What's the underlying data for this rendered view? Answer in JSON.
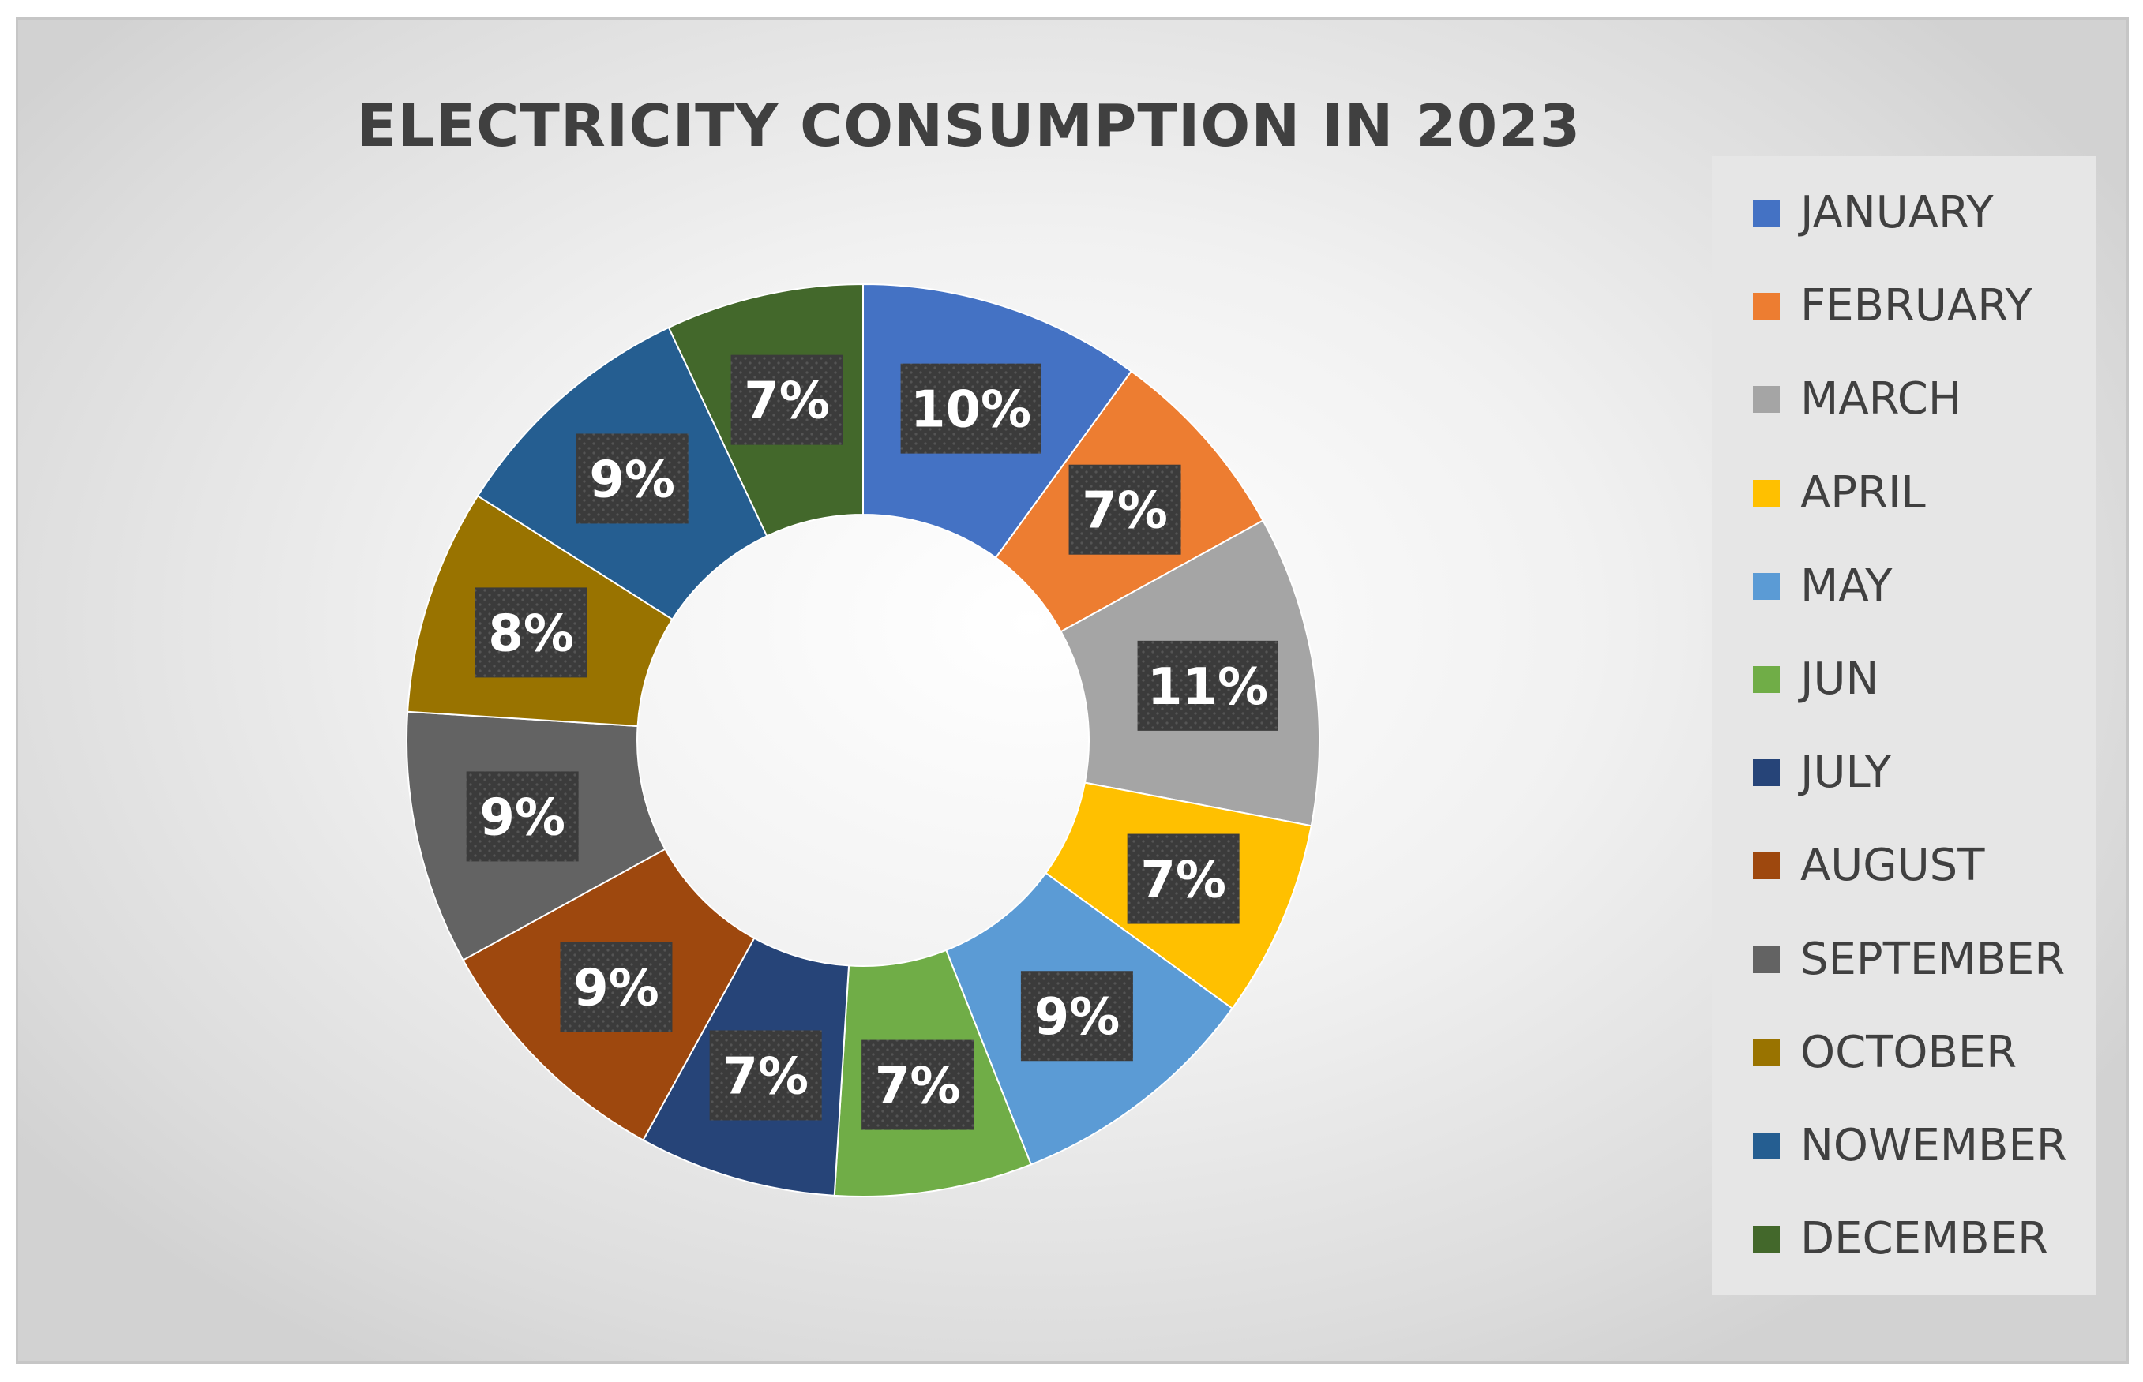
{
  "chart_data": {
    "type": "donut",
    "title": "ELECTRICITY CONSUMPTION IN 2023",
    "categories": [
      "JANUARY",
      "FEBRUARY",
      "MARCH",
      "APRIL",
      "MAY",
      "JUN",
      "JULY",
      "AUGUST",
      "SEPTEMBER",
      "OCTOBER",
      "NOWEMBER",
      "DECEMBER"
    ],
    "values": [
      10,
      7,
      11,
      7,
      9,
      7,
      7,
      9,
      9,
      8,
      9,
      7
    ],
    "labels": [
      "10%",
      "7%",
      "11%",
      "7%",
      "9%",
      "7%",
      "7%",
      "9%",
      "9%",
      "8%",
      "9%",
      "7%"
    ],
    "colors": [
      "#4472C4",
      "#ED7D31",
      "#A5A5A5",
      "#FFC000",
      "#5B9BD5",
      "#70AD47",
      "#264478",
      "#9E480E",
      "#636363",
      "#997300",
      "#255E91",
      "#43682B"
    ],
    "legend_position": "right"
  },
  "label_box_color": "#3b3b3b",
  "label_text_color": "#ffffff"
}
